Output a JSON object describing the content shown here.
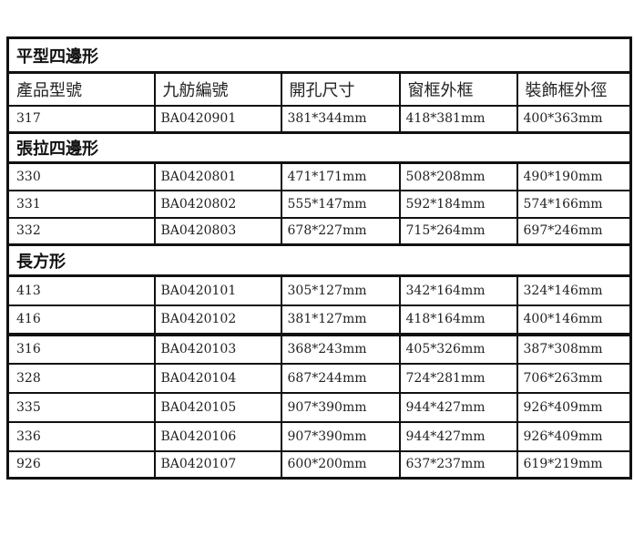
{
  "headers": [
    "產品型號",
    "九舫編號",
    "開孔尺寸",
    "窗框外框",
    "裝飾框外徑"
  ],
  "sections": [
    {
      "title": "平型四邊形",
      "show_header": true,
      "rows": [
        [
          "317",
          "BA0420901",
          "381*344mm",
          "418*381mm",
          "400*363mm"
        ]
      ]
    },
    {
      "title": "張拉四邊形",
      "show_header": false,
      "rows": [
        [
          "330",
          "BA0420801",
          "471*171mm",
          "508*208mm",
          "490*190mm"
        ],
        [
          "331",
          "BA0420802",
          "555*147mm",
          "592*184mm",
          "574*166mm"
        ],
        [
          "332",
          "BA0420803",
          "678*227mm",
          "715*264mm",
          "697*246mm"
        ]
      ]
    },
    {
      "title": "長方形",
      "show_header": false,
      "rows": [
        [
          "413",
          "BA0420101",
          "305*127mm",
          "342*164mm",
          "324*146mm"
        ],
        [
          "416",
          "BA0420102",
          "381*127mm",
          "418*164mm",
          "400*146mm"
        ],
        [
          "316",
          "BA0420103",
          "368*243mm",
          "405*326mm",
          "387*308mm"
        ],
        [
          "328",
          "BA0420104",
          "687*244mm",
          "724*281mm",
          "706*263mm"
        ],
        [
          "335",
          "BA0420105",
          "907*390mm",
          "944*427mm",
          "926*409mm"
        ],
        [
          "336",
          "BA0420106",
          "907*390mm",
          "944*427mm",
          "926*409mm"
        ],
        [
          "926",
          "BA0420107",
          "600*200mm",
          "637*237mm",
          "619*219mm"
        ]
      ]
    }
  ]
}
